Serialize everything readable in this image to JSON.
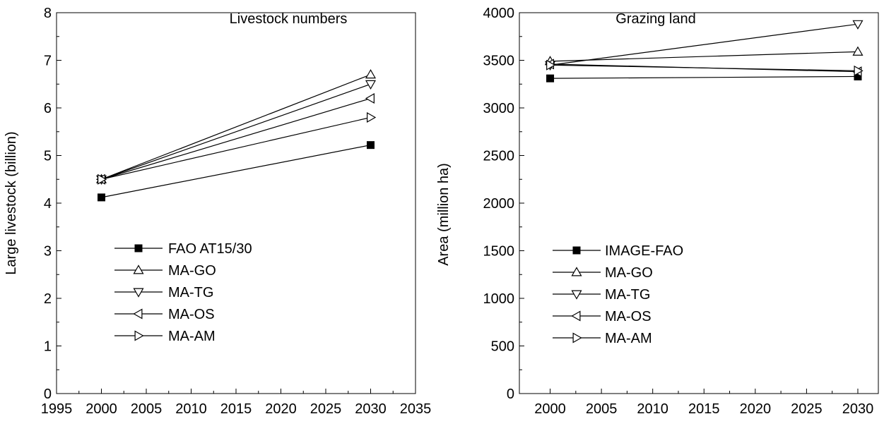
{
  "chart_data": [
    {
      "type": "line",
      "title": "Livestock numbers",
      "xlabel": "",
      "ylabel": "Large livestock (billion)",
      "xlim": [
        1995,
        2035
      ],
      "ylim": [
        0,
        8
      ],
      "x_ticks": [
        1995,
        2000,
        2005,
        2010,
        2015,
        2020,
        2025,
        2030,
        2035
      ],
      "y_ticks": [
        0,
        1,
        2,
        3,
        4,
        5,
        6,
        7,
        8
      ],
      "legend_position": "lower-left",
      "series": [
        {
          "name": "FAO AT15/30",
          "marker": "square-filled",
          "x": [
            2000,
            2030
          ],
          "y": [
            4.12,
            5.22
          ]
        },
        {
          "name": "MA-GO",
          "marker": "triangle-up",
          "x": [
            2000,
            2030
          ],
          "y": [
            4.5,
            6.7
          ]
        },
        {
          "name": "MA-TG",
          "marker": "triangle-down",
          "x": [
            2000,
            2030
          ],
          "y": [
            4.5,
            6.5
          ]
        },
        {
          "name": "MA-OS",
          "marker": "triangle-left",
          "x": [
            2000,
            2030
          ],
          "y": [
            4.5,
            6.2
          ]
        },
        {
          "name": "MA-AM",
          "marker": "triangle-right",
          "x": [
            2000,
            2030
          ],
          "y": [
            4.5,
            5.8
          ]
        }
      ]
    },
    {
      "type": "line",
      "title": "Grazing land",
      "xlabel": "",
      "ylabel": "Area (million ha)",
      "xlim": [
        1997,
        2032
      ],
      "ylim": [
        0,
        4000
      ],
      "x_ticks": [
        2000,
        2005,
        2010,
        2015,
        2020,
        2025,
        2030
      ],
      "y_ticks": [
        0,
        500,
        1000,
        1500,
        2000,
        2500,
        3000,
        3500,
        4000
      ],
      "legend_position": "lower-left",
      "series": [
        {
          "name": "IMAGE-FAO",
          "marker": "square-filled",
          "x": [
            2000,
            2030
          ],
          "y": [
            3310,
            3330
          ]
        },
        {
          "name": "MA-GO",
          "marker": "triangle-up",
          "x": [
            2000,
            2030
          ],
          "y": [
            3490,
            3590
          ]
        },
        {
          "name": "MA-TG",
          "marker": "triangle-down",
          "x": [
            2000,
            2030
          ],
          "y": [
            3450,
            3880
          ]
        },
        {
          "name": "MA-OS",
          "marker": "triangle-left",
          "x": [
            2000,
            2030
          ],
          "y": [
            3460,
            3380
          ]
        },
        {
          "name": "MA-AM",
          "marker": "triangle-right",
          "x": [
            2000,
            2030
          ],
          "y": [
            3450,
            3390
          ]
        }
      ]
    }
  ]
}
